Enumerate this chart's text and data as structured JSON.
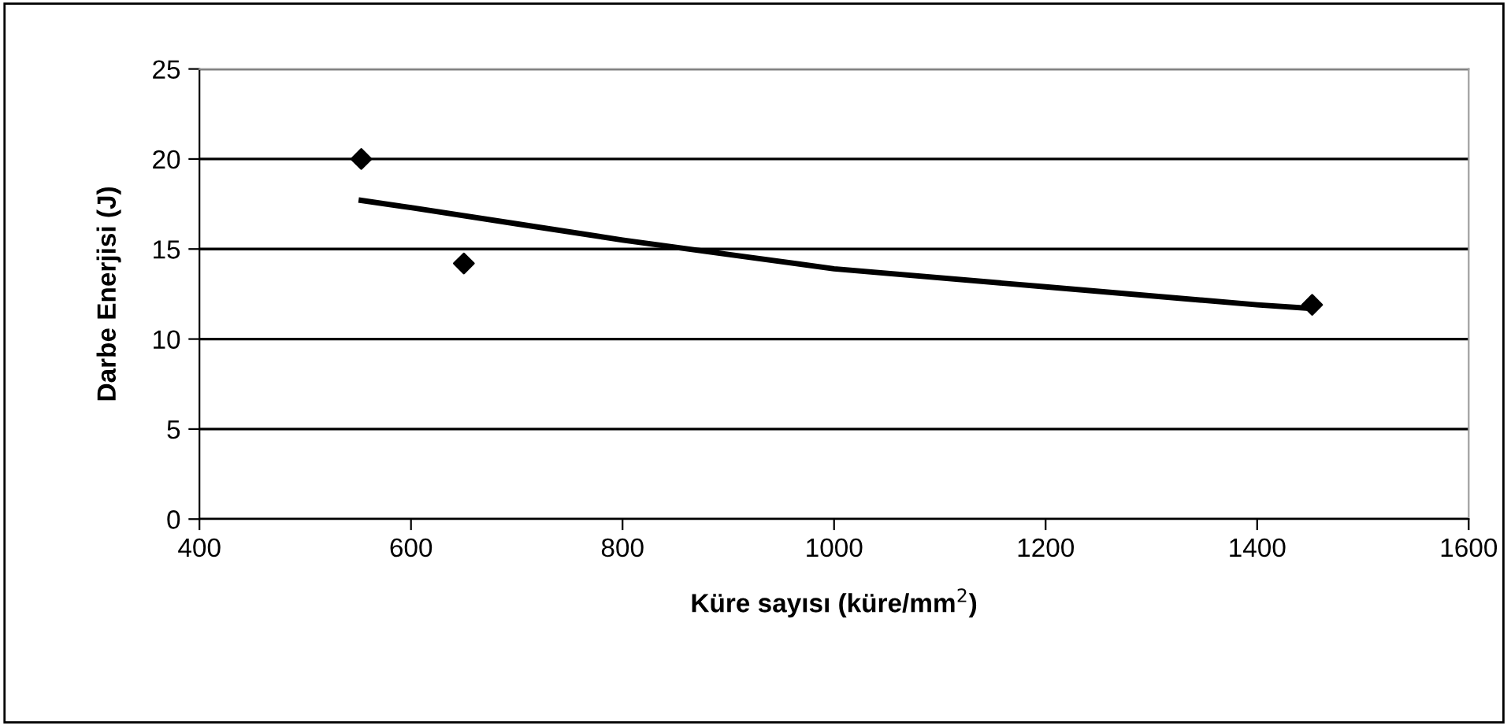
{
  "chart_data": {
    "type": "scatter",
    "xlabel": "Küre sayısı (küre/mm$^{2}$)",
    "ylabel": "Darbe Enerjisi (J)",
    "series": [
      {
        "color": "#000000",
        "marker": "diamond",
        "x": [
          553,
          650,
          1452
        ],
        "values": [
          20,
          14.2,
          11.9
        ]
      },
      {
        "type": "line",
        "color": "#000000",
        "marker": "none",
        "line_style": "solid",
        "x": [
          553,
          600,
          700,
          800,
          900,
          1000,
          1200,
          1400,
          1452
        ],
        "values": [
          17.7,
          17.3,
          16.4,
          15.5,
          14.7,
          13.9,
          12.9,
          11.9,
          11.7
        ]
      }
    ],
    "xlim": [
      400,
      1600
    ],
    "xticks": [
      400,
      600,
      800,
      1000,
      1200,
      1400,
      1600
    ],
    "ylim": [
      0,
      25
    ],
    "yticks": [
      0,
      5,
      10,
      15,
      20,
      25
    ],
    "grid": "y",
    "legend": false
  }
}
